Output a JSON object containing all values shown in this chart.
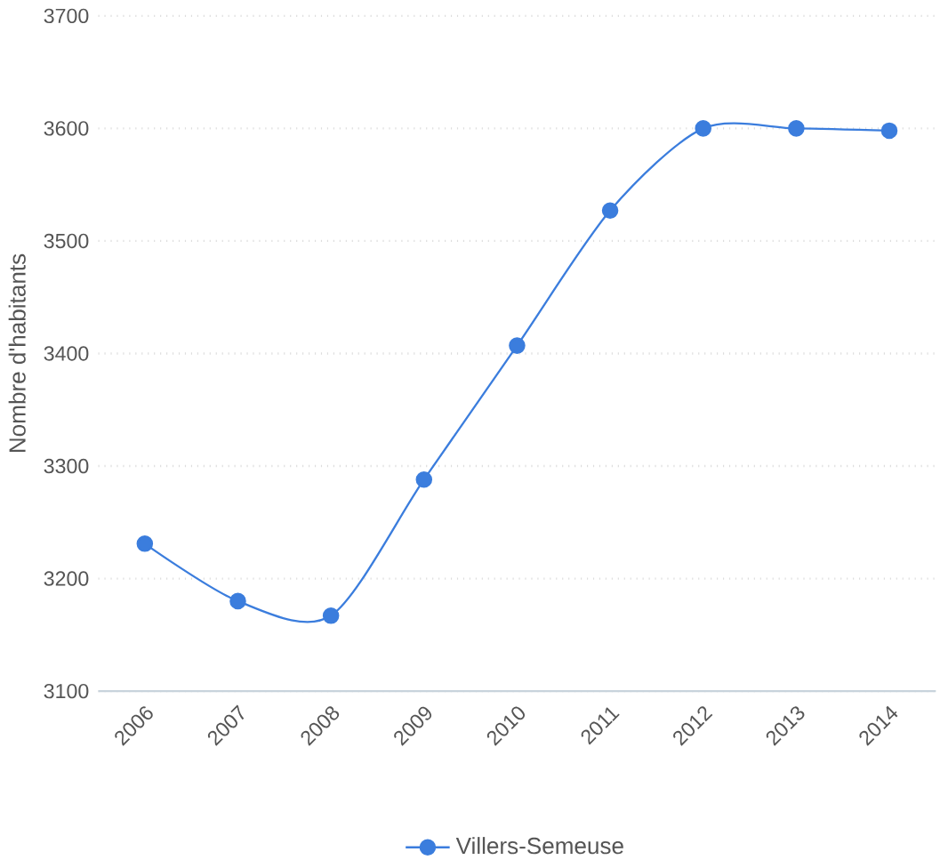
{
  "chart_data": {
    "type": "line",
    "ylabel": "Nombre d'habitants",
    "categories": [
      "2006",
      "2007",
      "2008",
      "2009",
      "2010",
      "2011",
      "2012",
      "2013",
      "2014"
    ],
    "series": [
      {
        "name": "Villers-Semeuse",
        "color": "#3b7ddd",
        "values": [
          3231,
          3180,
          3167,
          3288,
          3407,
          3527,
          3600,
          3600,
          3598
        ]
      }
    ],
    "ylim": [
      3100,
      3700
    ],
    "yticks": [
      3100,
      3200,
      3300,
      3400,
      3500,
      3600,
      3700
    ],
    "grid": "y",
    "legend": "bottom",
    "marker": "circle"
  }
}
